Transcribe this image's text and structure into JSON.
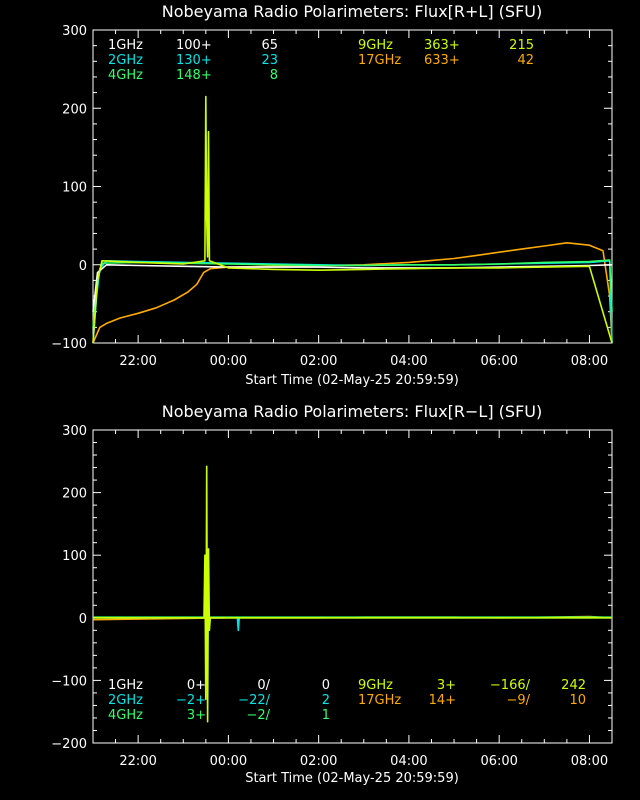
{
  "chart_data": [
    {
      "type": "line",
      "title": "Nobeyama Radio Polarimeters: Flux[R+L] (SFU)",
      "xlabel": "Start Time (02-May-25 20:59:59)",
      "ylabel": "",
      "ylim": [
        -100,
        300
      ],
      "yticks": [
        "300",
        "200",
        "100",
        "0",
        "−100"
      ],
      "xlim_hours": [
        21.0,
        32.5
      ],
      "xticks": [
        "22:00",
        "00:00",
        "02:00",
        "04:00",
        "06:00",
        "08:00"
      ],
      "legend": [
        {
          "freq": "1GHz",
          "base": "100+",
          "val": "65",
          "color": "#ffffff"
        },
        {
          "freq": "2GHz",
          "base": "130+",
          "val": "23",
          "color": "#00e5e5"
        },
        {
          "freq": "4GHz",
          "base": "148+",
          "val": "8",
          "color": "#33ff66"
        },
        {
          "freq": "9GHz",
          "base": "363+",
          "val": "215",
          "color": "#ccff00"
        },
        {
          "freq": "17GHz",
          "base": "633+",
          "val": "42",
          "color": "#ffaa00"
        }
      ],
      "series": [
        {
          "color": "#ffaa00",
          "points": [
            [
              21.0,
              -100
            ],
            [
              21.15,
              -80
            ],
            [
              21.3,
              -75
            ],
            [
              21.6,
              -68
            ],
            [
              22.0,
              -62
            ],
            [
              22.4,
              -55
            ],
            [
              22.8,
              -45
            ],
            [
              23.1,
              -35
            ],
            [
              23.3,
              -25
            ],
            [
              23.45,
              -10
            ],
            [
              23.6,
              -5
            ],
            [
              24.0,
              -3
            ],
            [
              25.0,
              -2
            ],
            [
              26.0,
              -1
            ],
            [
              27.0,
              0
            ],
            [
              28.0,
              3
            ],
            [
              29.0,
              8
            ],
            [
              29.5,
              12
            ],
            [
              30.0,
              16
            ],
            [
              30.5,
              20
            ],
            [
              31.0,
              24
            ],
            [
              31.5,
              28
            ],
            [
              32.0,
              25
            ],
            [
              32.3,
              18
            ],
            [
              32.45,
              -40
            ],
            [
              32.5,
              -100
            ]
          ]
        },
        {
          "color": "#00e5e5",
          "points": [
            [
              21.0,
              -100
            ],
            [
              21.08,
              -40
            ],
            [
              21.15,
              -5
            ],
            [
              21.3,
              5
            ],
            [
              22.0,
              4
            ],
            [
              23.0,
              3
            ],
            [
              24.0,
              2
            ],
            [
              25.0,
              1
            ],
            [
              26.0,
              0
            ],
            [
              27.0,
              -1
            ],
            [
              28.0,
              0
            ],
            [
              29.0,
              0
            ],
            [
              30.0,
              1
            ],
            [
              31.0,
              2
            ],
            [
              32.0,
              3
            ],
            [
              32.45,
              5
            ],
            [
              32.5,
              -100
            ]
          ]
        },
        {
          "color": "#33ff66",
          "points": [
            [
              21.0,
              -80
            ],
            [
              21.1,
              -20
            ],
            [
              21.2,
              2
            ],
            [
              22.0,
              3
            ],
            [
              23.0,
              2
            ],
            [
              24.0,
              1
            ],
            [
              25.0,
              0
            ],
            [
              26.0,
              -1
            ],
            [
              27.0,
              -1
            ],
            [
              28.0,
              0
            ],
            [
              29.0,
              0
            ],
            [
              30.0,
              1
            ],
            [
              31.0,
              3
            ],
            [
              32.0,
              4
            ],
            [
              32.45,
              6
            ],
            [
              32.5,
              -60
            ]
          ]
        },
        {
          "color": "#ffffff",
          "points": [
            [
              21.0,
              -60
            ],
            [
              21.1,
              -10
            ],
            [
              21.3,
              0
            ],
            [
              22.0,
              -1
            ],
            [
              23.0,
              -2
            ],
            [
              24.0,
              -3
            ],
            [
              25.0,
              -3
            ],
            [
              26.0,
              -3
            ],
            [
              27.0,
              -4
            ],
            [
              28.0,
              -4
            ],
            [
              29.0,
              -4
            ],
            [
              30.0,
              -3
            ],
            [
              31.0,
              -2
            ],
            [
              32.0,
              -1
            ],
            [
              32.5,
              0
            ]
          ]
        },
        {
          "color": "#ccff00",
          "points": [
            [
              21.0,
              -100
            ],
            [
              21.1,
              -20
            ],
            [
              21.2,
              5
            ],
            [
              22.0,
              3
            ],
            [
              23.0,
              1
            ],
            [
              23.48,
              5
            ],
            [
              23.5,
              215
            ],
            [
              23.52,
              60
            ],
            [
              23.54,
              10
            ],
            [
              23.56,
              170
            ],
            [
              23.58,
              5
            ],
            [
              24.0,
              -4
            ],
            [
              25.0,
              -6
            ],
            [
              26.0,
              -7
            ],
            [
              27.0,
              -6
            ],
            [
              28.0,
              -5
            ],
            [
              29.0,
              -4
            ],
            [
              30.0,
              -4
            ],
            [
              31.0,
              -3
            ],
            [
              32.0,
              -2
            ],
            [
              32.5,
              -100
            ]
          ]
        }
      ]
    },
    {
      "type": "line",
      "title": "Nobeyama Radio Polarimeters: Flux[R−L] (SFU)",
      "xlabel": "Start Time (02-May-25 20:59:59)",
      "ylabel": "",
      "ylim": [
        -200,
        300
      ],
      "yticks": [
        "300",
        "200",
        "100",
        "0",
        "−100",
        "−200"
      ],
      "xlim_hours": [
        21.0,
        32.5
      ],
      "xticks": [
        "22:00",
        "00:00",
        "02:00",
        "04:00",
        "06:00",
        "08:00"
      ],
      "legend": [
        {
          "freq": "1GHz",
          "base": "0+",
          "val": "0/",
          "val2": "0",
          "color": "#ffffff"
        },
        {
          "freq": "2GHz",
          "base": "−2+",
          "val": "−22/",
          "val2": "2",
          "color": "#00e5e5"
        },
        {
          "freq": "4GHz",
          "base": "3+",
          "val": "−2/",
          "val2": "1",
          "color": "#33ff66"
        },
        {
          "freq": "9GHz",
          "base": "3+",
          "val": "−166/",
          "val2": "242",
          "color": "#ccff00"
        },
        {
          "freq": "17GHz",
          "base": "14+",
          "val": "−9/",
          "val2": "10",
          "color": "#ffaa00"
        }
      ],
      "series": [
        {
          "color": "#ffaa00",
          "points": [
            [
              21.0,
              -3
            ],
            [
              22.0,
              -2
            ],
            [
              23.0,
              -1
            ],
            [
              24.0,
              0
            ],
            [
              25.0,
              0
            ],
            [
              26.0,
              0
            ],
            [
              27.0,
              1
            ],
            [
              28.0,
              1
            ],
            [
              29.0,
              1
            ],
            [
              30.0,
              0
            ],
            [
              31.0,
              1
            ],
            [
              32.0,
              2
            ],
            [
              32.5,
              0
            ]
          ]
        },
        {
          "color": "#00e5e5",
          "points": [
            [
              21.0,
              0
            ],
            [
              22.0,
              0
            ],
            [
              23.0,
              0
            ],
            [
              23.5,
              0
            ],
            [
              24.2,
              0
            ],
            [
              24.22,
              -20
            ],
            [
              24.24,
              0
            ],
            [
              25.0,
              0
            ],
            [
              27.0,
              0
            ],
            [
              29.0,
              0
            ],
            [
              31.0,
              0
            ],
            [
              32.5,
              0
            ]
          ]
        },
        {
          "color": "#33ff66",
          "points": [
            [
              21.0,
              1
            ],
            [
              23.0,
              1
            ],
            [
              24.0,
              1
            ],
            [
              26.0,
              1
            ],
            [
              28.0,
              1
            ],
            [
              30.0,
              1
            ],
            [
              32.5,
              1
            ]
          ]
        },
        {
          "color": "#ccff00",
          "points": [
            [
              21.0,
              0
            ],
            [
              22.0,
              0
            ],
            [
              23.0,
              0
            ],
            [
              23.46,
              0
            ],
            [
              23.48,
              100
            ],
            [
              23.5,
              -130
            ],
            [
              23.52,
              242
            ],
            [
              23.54,
              -166
            ],
            [
              23.56,
              110
            ],
            [
              23.58,
              -20
            ],
            [
              23.6,
              0
            ],
            [
              24.0,
              0
            ],
            [
              26.0,
              0
            ],
            [
              28.0,
              0
            ],
            [
              30.0,
              0
            ],
            [
              32.5,
              0
            ]
          ]
        }
      ]
    }
  ]
}
